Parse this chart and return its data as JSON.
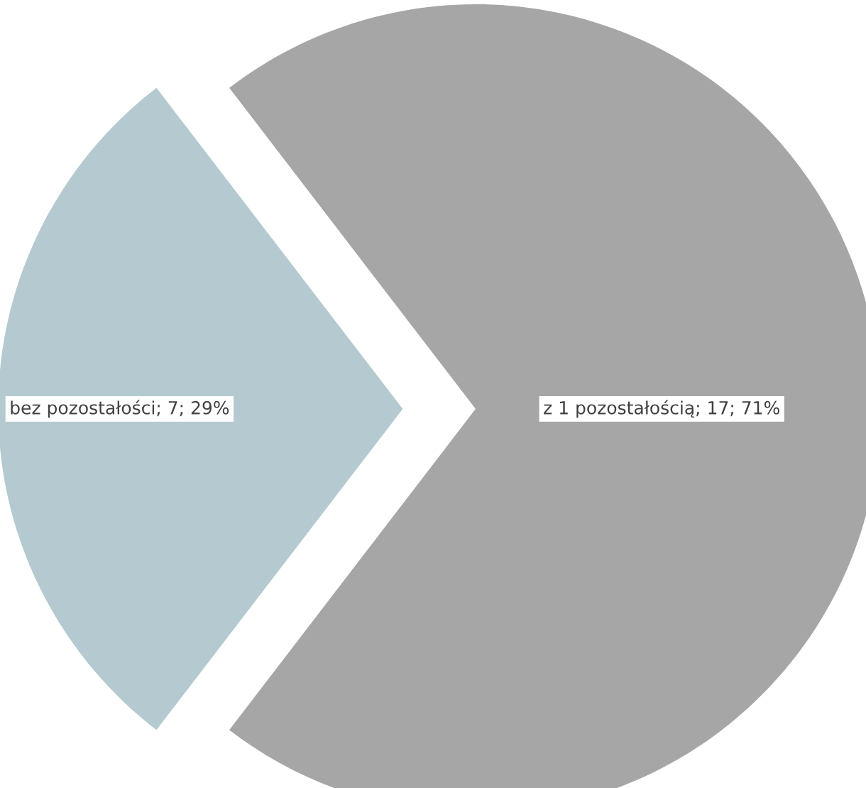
{
  "chart_data": {
    "type": "pie",
    "categories": [
      "z 1 pozostałością",
      "bez pozostałości"
    ],
    "values": [
      17,
      7
    ],
    "colors": [
      "#a6a6a6",
      "#b4cad0"
    ],
    "value_labels": [
      "17; 71%",
      "7; 29%"
    ],
    "legend": false
  }
}
